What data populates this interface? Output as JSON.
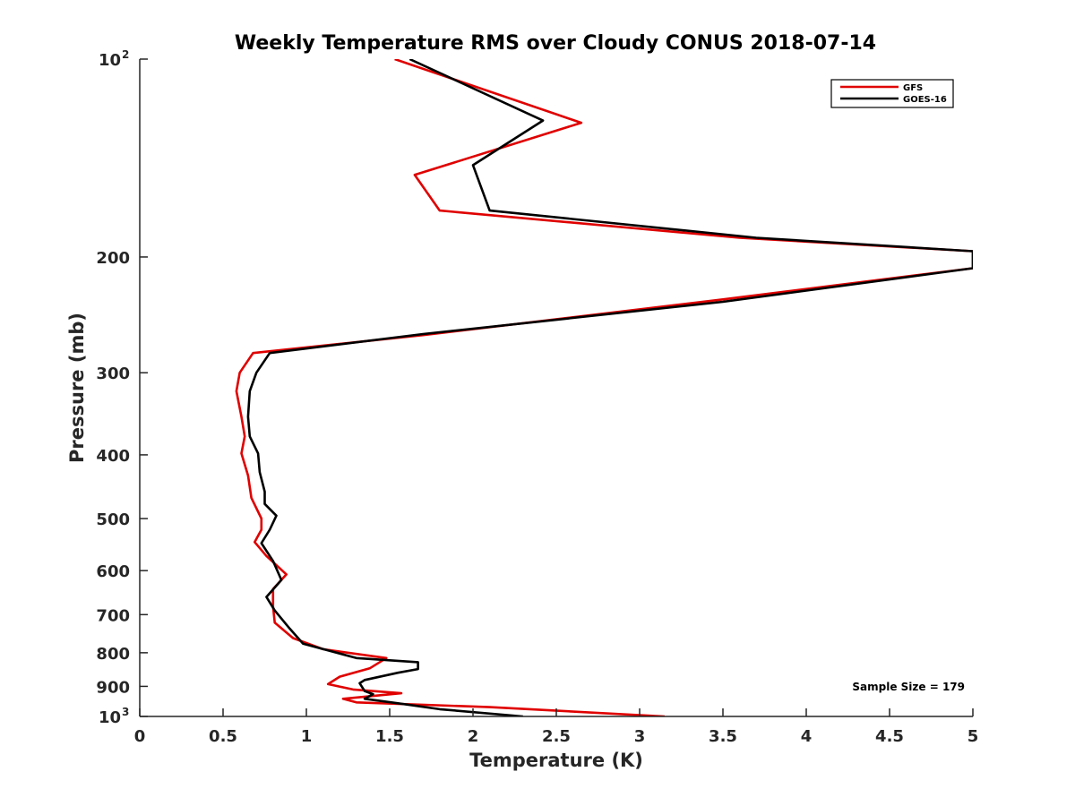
{
  "chart_data": {
    "type": "line",
    "title": "Weekly Temperature RMS over Cloudy CONUS 2018-07-14",
    "xlabel": "Temperature (K)",
    "ylabel": "Pressure (mb)",
    "xlim": [
      0,
      5
    ],
    "ylim": [
      100,
      1000
    ],
    "yscale": "log",
    "yaxis_reversed": true,
    "xticks": [
      "0",
      "0.5",
      "1",
      "1.5",
      "2",
      "2.5",
      "3",
      "3.5",
      "4",
      "4.5",
      "5"
    ],
    "yticks": [
      {
        "value": 100,
        "base": "10",
        "exp": "2"
      },
      {
        "value": 200,
        "label": "200"
      },
      {
        "value": 300,
        "label": "300"
      },
      {
        "value": 400,
        "label": "400"
      },
      {
        "value": 500,
        "label": "500"
      },
      {
        "value": 600,
        "label": "600"
      },
      {
        "value": 700,
        "label": "700"
      },
      {
        "value": 800,
        "label": "800"
      },
      {
        "value": 900,
        "label": "900"
      },
      {
        "value": 1000,
        "base": "10",
        "exp": "3"
      }
    ],
    "grid": false,
    "legend_position": "top-right",
    "annotation": "Sample Size = 179",
    "series": [
      {
        "name": "GFS",
        "color": "#e00000",
        "points": [
          [
            1.53,
            100
          ],
          [
            2.65,
            125
          ],
          [
            1.65,
            150
          ],
          [
            1.8,
            170
          ],
          [
            3.6,
            187
          ],
          [
            5.0,
            196
          ],
          [
            5.0,
            208
          ],
          [
            3.5,
            232
          ],
          [
            1.7,
            263
          ],
          [
            0.68,
            280
          ],
          [
            0.6,
            300
          ],
          [
            0.58,
            320
          ],
          [
            0.61,
            350
          ],
          [
            0.63,
            375
          ],
          [
            0.61,
            398
          ],
          [
            0.65,
            430
          ],
          [
            0.67,
            465
          ],
          [
            0.73,
            500
          ],
          [
            0.73,
            520
          ],
          [
            0.69,
            543
          ],
          [
            0.76,
            570
          ],
          [
            0.88,
            608
          ],
          [
            0.8,
            640
          ],
          [
            0.8,
            680
          ],
          [
            0.81,
            720
          ],
          [
            0.92,
            760
          ],
          [
            1.1,
            790
          ],
          [
            1.48,
            815
          ],
          [
            1.38,
            845
          ],
          [
            1.2,
            870
          ],
          [
            1.13,
            893
          ],
          [
            1.28,
            910
          ],
          [
            1.57,
            922
          ],
          [
            1.22,
            940
          ],
          [
            1.3,
            952
          ],
          [
            2.1,
            968
          ],
          [
            3.15,
            1000
          ]
        ]
      },
      {
        "name": "GOES-16",
        "color": "#000000",
        "points": [
          [
            1.62,
            100
          ],
          [
            2.42,
            124
          ],
          [
            2.0,
            145
          ],
          [
            2.1,
            170
          ],
          [
            3.7,
            187
          ],
          [
            5.0,
            196
          ],
          [
            5.0,
            208
          ],
          [
            3.5,
            234
          ],
          [
            1.7,
            262
          ],
          [
            0.78,
            280
          ],
          [
            0.7,
            300
          ],
          [
            0.66,
            320
          ],
          [
            0.65,
            350
          ],
          [
            0.66,
            375
          ],
          [
            0.71,
            398
          ],
          [
            0.72,
            425
          ],
          [
            0.75,
            455
          ],
          [
            0.75,
            475
          ],
          [
            0.82,
            495
          ],
          [
            0.78,
            520
          ],
          [
            0.73,
            545
          ],
          [
            0.8,
            580
          ],
          [
            0.85,
            620
          ],
          [
            0.76,
            658
          ],
          [
            0.81,
            690
          ],
          [
            0.9,
            735
          ],
          [
            0.98,
            775
          ],
          [
            1.3,
            815
          ],
          [
            1.67,
            827
          ],
          [
            1.67,
            847
          ],
          [
            1.55,
            858
          ],
          [
            1.35,
            880
          ],
          [
            1.32,
            890
          ],
          [
            1.35,
            915
          ],
          [
            1.4,
            925
          ],
          [
            1.35,
            940
          ],
          [
            1.55,
            955
          ],
          [
            1.8,
            975
          ],
          [
            2.3,
            1000
          ]
        ]
      }
    ]
  }
}
